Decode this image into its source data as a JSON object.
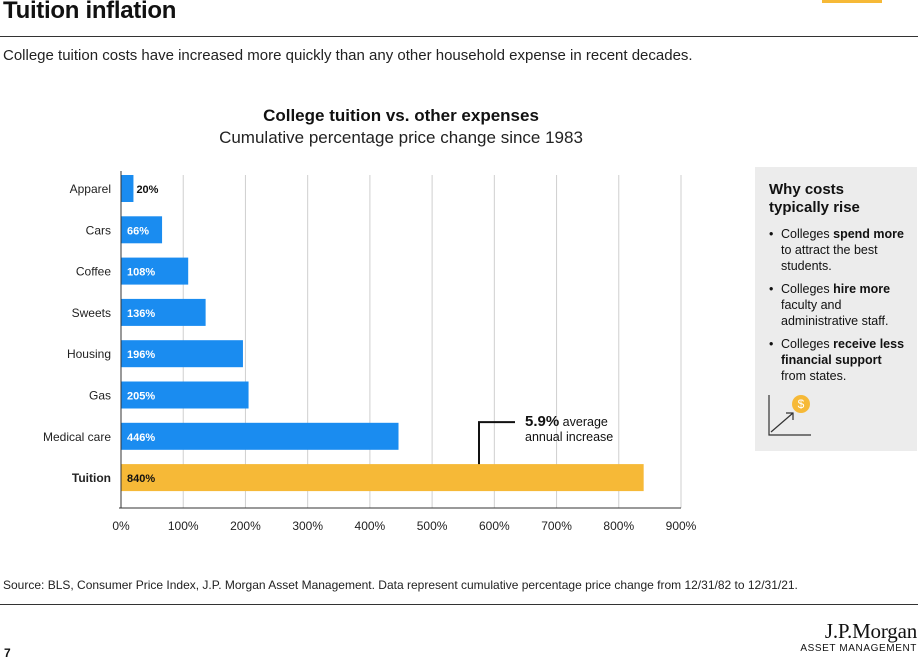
{
  "page": {
    "title": "Tuition inflation",
    "subtitle": "College tuition costs have increased more quickly than any other household expense in recent decades.",
    "source": "Source: BLS, Consumer Price Index, J.P. Morgan Asset Management. Data represent cumulative percentage price change from 12/31/82 to 12/31/21.",
    "page_number": "7"
  },
  "logo": {
    "name": "J.P.Morgan",
    "tagline": "ASSET MANAGEMENT"
  },
  "chart_data": {
    "type": "bar",
    "orientation": "horizontal",
    "title": "College tuition vs. other expenses",
    "subtitle": "Cumulative percentage price change since 1983",
    "categories": [
      "Apparel",
      "Cars",
      "Coffee",
      "Sweets",
      "Housing",
      "Gas",
      "Medical care",
      "Tuition"
    ],
    "values": [
      20,
      66,
      108,
      136,
      196,
      205,
      446,
      840
    ],
    "value_labels": [
      "20%",
      "66%",
      "108%",
      "136%",
      "196%",
      "205%",
      "446%",
      "840%"
    ],
    "x_ticks": [
      0,
      100,
      200,
      300,
      400,
      500,
      600,
      700,
      800,
      900
    ],
    "x_tick_labels": [
      "0%",
      "100%",
      "200%",
      "300%",
      "400%",
      "500%",
      "600%",
      "700%",
      "800%",
      "900%"
    ],
    "xlim": [
      0,
      900
    ],
    "grid": "vertical",
    "highlight_category": "Tuition",
    "colors": {
      "bar": "#1a8cf0",
      "highlight": "#f6b937",
      "grid": "#cfcfcf",
      "axis": "#333333"
    },
    "annotation": {
      "value": "5.9%",
      "line1_suffix": " average",
      "line2": "annual increase",
      "target": "Tuition"
    }
  },
  "sidebar": {
    "title": "Why costs typically rise",
    "items": [
      {
        "pre": "Colleges ",
        "bold": "spend more",
        "post": " to attract the best students."
      },
      {
        "pre": "Colleges ",
        "bold": "hire more",
        "post": " faculty and administrative staff."
      },
      {
        "pre": "Colleges ",
        "bold": "receive less financial support",
        "post": " from states."
      }
    ],
    "icon": "growth-chart-dollar-icon",
    "icon_symbol": "$"
  }
}
